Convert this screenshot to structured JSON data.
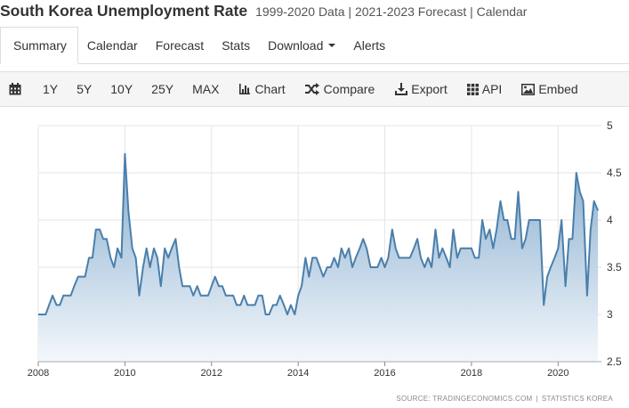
{
  "header": {
    "title": "South Korea Unemployment Rate",
    "subtitle": "1999-2020 Data | 2021-2023 Forecast | Calendar"
  },
  "tabs": [
    {
      "label": "Summary",
      "active": true
    },
    {
      "label": "Calendar"
    },
    {
      "label": "Forecast"
    },
    {
      "label": "Stats"
    },
    {
      "label": "Download"
    },
    {
      "label": "Alerts"
    }
  ],
  "toolbar": {
    "ranges": [
      "1Y",
      "5Y",
      "10Y",
      "25Y",
      "MAX"
    ],
    "chart_label": "Chart",
    "compare_label": "Compare",
    "export_label": "Export",
    "api_label": "API",
    "embed_label": "Embed"
  },
  "source": {
    "left": "SOURCE: TRADINGECONOMICS.COM",
    "sep": "|",
    "right": "STATISTICS KOREA"
  },
  "colors": {
    "line": "#4a7fab",
    "fill_top": "#7fa8cc",
    "fill_bottom": "#f3f7fb",
    "grid": "#e4e4e4"
  },
  "chart_data": {
    "type": "area",
    "title": "",
    "xlabel": "",
    "ylabel": "",
    "xlim": [
      2008.0,
      2021.0
    ],
    "ylim": [
      2.5,
      5
    ],
    "x_ticks": [
      "2008",
      "2010",
      "2012",
      "2014",
      "2016",
      "2018",
      "2020"
    ],
    "y_ticks": [
      "2.5",
      "3",
      "3.5",
      "4",
      "4.5",
      "5"
    ],
    "grid": true,
    "series": [
      {
        "x": [
          2008.0,
          2008.08,
          2008.17,
          2008.25,
          2008.33,
          2008.42,
          2008.5,
          2008.58,
          2008.67,
          2008.75,
          2008.83,
          2008.92,
          2009.0,
          2009.08,
          2009.17,
          2009.25,
          2009.33,
          2009.42,
          2009.5,
          2009.58,
          2009.67,
          2009.75,
          2009.83,
          2009.92,
          2010.0,
          2010.08,
          2010.17,
          2010.25,
          2010.33,
          2010.42,
          2010.5,
          2010.58,
          2010.67,
          2010.75,
          2010.83,
          2010.92,
          2011.0,
          2011.08,
          2011.17,
          2011.25,
          2011.33,
          2011.42,
          2011.5,
          2011.58,
          2011.67,
          2011.75,
          2011.83,
          2011.92,
          2012.0,
          2012.08,
          2012.17,
          2012.25,
          2012.33,
          2012.42,
          2012.5,
          2012.58,
          2012.67,
          2012.75,
          2012.83,
          2012.92,
          2013.0,
          2013.08,
          2013.17,
          2013.25,
          2013.33,
          2013.42,
          2013.5,
          2013.58,
          2013.67,
          2013.75,
          2013.83,
          2013.92,
          2014.0,
          2014.08,
          2014.17,
          2014.25,
          2014.33,
          2014.42,
          2014.5,
          2014.58,
          2014.67,
          2014.75,
          2014.83,
          2014.92,
          2015.0,
          2015.08,
          2015.17,
          2015.25,
          2015.33,
          2015.42,
          2015.5,
          2015.58,
          2015.67,
          2015.75,
          2015.83,
          2015.92,
          2016.0,
          2016.08,
          2016.17,
          2016.25,
          2016.33,
          2016.42,
          2016.5,
          2016.58,
          2016.67,
          2016.75,
          2016.83,
          2016.92,
          2017.0,
          2017.08,
          2017.17,
          2017.25,
          2017.33,
          2017.42,
          2017.5,
          2017.58,
          2017.67,
          2017.75,
          2017.83,
          2017.92,
          2018.0,
          2018.08,
          2018.17,
          2018.25,
          2018.33,
          2018.42,
          2018.5,
          2018.58,
          2018.67,
          2018.75,
          2018.83,
          2018.92,
          2019.0,
          2019.08,
          2019.17,
          2019.25,
          2019.33,
          2019.42,
          2019.5,
          2019.58,
          2019.67,
          2019.75,
          2019.83,
          2019.92,
          2020.0,
          2020.08,
          2020.17,
          2020.25,
          2020.33,
          2020.42,
          2020.5,
          2020.58,
          2020.67,
          2020.75,
          2020.83,
          2020.92
        ],
        "values": [
          3.0,
          3.0,
          3.0,
          3.1,
          3.2,
          3.1,
          3.1,
          3.2,
          3.2,
          3.2,
          3.3,
          3.4,
          3.4,
          3.4,
          3.6,
          3.6,
          3.9,
          3.9,
          3.8,
          3.8,
          3.6,
          3.5,
          3.7,
          3.6,
          4.7,
          4.1,
          3.7,
          3.6,
          3.2,
          3.5,
          3.7,
          3.5,
          3.7,
          3.6,
          3.3,
          3.7,
          3.6,
          3.7,
          3.8,
          3.5,
          3.3,
          3.3,
          3.3,
          3.2,
          3.3,
          3.2,
          3.2,
          3.2,
          3.3,
          3.4,
          3.3,
          3.3,
          3.2,
          3.2,
          3.2,
          3.1,
          3.1,
          3.2,
          3.1,
          3.1,
          3.1,
          3.2,
          3.2,
          3.0,
          3.0,
          3.1,
          3.1,
          3.2,
          3.1,
          3.0,
          3.1,
          3.0,
          3.2,
          3.3,
          3.6,
          3.4,
          3.6,
          3.6,
          3.5,
          3.4,
          3.5,
          3.5,
          3.6,
          3.5,
          3.7,
          3.6,
          3.7,
          3.5,
          3.6,
          3.7,
          3.8,
          3.7,
          3.5,
          3.5,
          3.5,
          3.6,
          3.5,
          3.6,
          3.9,
          3.7,
          3.6,
          3.6,
          3.6,
          3.6,
          3.7,
          3.8,
          3.6,
          3.5,
          3.6,
          3.5,
          3.9,
          3.6,
          3.7,
          3.6,
          3.5,
          3.9,
          3.6,
          3.7,
          3.7,
          3.7,
          3.7,
          3.6,
          3.6,
          4.0,
          3.8,
          3.9,
          3.7,
          3.9,
          4.2,
          4.0,
          4.0,
          3.8,
          3.8,
          4.3,
          3.7,
          3.8,
          4.0,
          4.0,
          4.0,
          4.0,
          3.1,
          3.4,
          3.5,
          3.6,
          3.7,
          4.0,
          3.3,
          3.8,
          3.8,
          4.5,
          4.3,
          4.2,
          3.2,
          3.9,
          4.2,
          4.1
        ]
      }
    ]
  }
}
